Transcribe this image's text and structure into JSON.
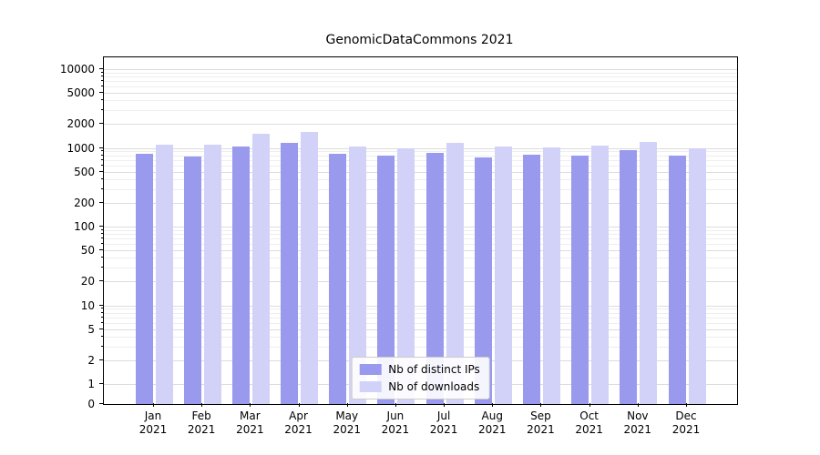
{
  "chart_data": {
    "type": "bar",
    "title": "GenomicDataCommons 2021",
    "categories": [
      "Jan 2021",
      "Feb 2021",
      "Mar 2021",
      "Apr 2021",
      "May 2021",
      "Jun 2021",
      "Jul 2021",
      "Aug 2021",
      "Sep 2021",
      "Oct 2021",
      "Nov 2021",
      "Dec 2021"
    ],
    "series": [
      {
        "name": "Nb of distinct IPs",
        "color": "#9999ee",
        "values": [
          850,
          780,
          1050,
          1150,
          840,
          790,
          860,
          760,
          810,
          800,
          930,
          790
        ]
      },
      {
        "name": "Nb of downloads",
        "color": "#d2d2f8",
        "values": [
          1100,
          1100,
          1500,
          1600,
          1050,
          1000,
          1150,
          1050,
          1020,
          1060,
          1200,
          1000
        ]
      }
    ],
    "yscale": "symlog",
    "ylim": [
      0,
      10000
    ],
    "yticks": [
      0,
      1,
      2,
      5,
      10,
      20,
      50,
      100,
      200,
      500,
      1000,
      2000,
      5000,
      10000
    ],
    "ytick_labels": [
      "0",
      "1",
      "2",
      "5",
      "10",
      "20",
      "50",
      "100",
      "200",
      "500",
      "1000",
      "2000",
      "5000",
      "10000"
    ],
    "minor_tick_multipliers": [
      3,
      4,
      6,
      7,
      8,
      9
    ],
    "grid": true,
    "legend_position": "lower center"
  }
}
